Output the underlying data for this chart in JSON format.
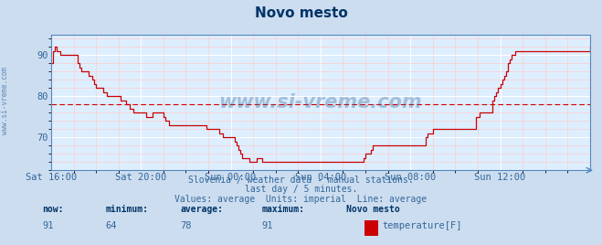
{
  "title": "Novo mesto",
  "bg_color": "#ccddf0",
  "plot_bg_color": "#ddeeff",
  "line_color": "#cc0000",
  "avg_line_color": "#cc0000",
  "avg_value": 78,
  "grid_color_major": "#ffffff",
  "grid_color_minor": "#ffcccc",
  "y_min": 62,
  "y_max": 95,
  "yticks": [
    70,
    80,
    90
  ],
  "xlabel_ticks": [
    0,
    48,
    96,
    144,
    192,
    240,
    288
  ],
  "xlabel_labels": [
    "Sat 16:00",
    "Sat 20:00",
    "Sun 00:00",
    "Sun 04:00",
    "Sun 08:00",
    "Sun 12:00",
    ""
  ],
  "footer_line1": "Slovenia / weather data - manual stations.",
  "footer_line2": "last day / 5 minutes.",
  "footer_line3": "Values: average  Units: imperial  Line: average",
  "legend_label": "temperature[F]",
  "legend_color": "#cc0000",
  "watermark": "www.si-vreme.com",
  "data_y": [
    88,
    91,
    92,
    91,
    91,
    90,
    90,
    90,
    90,
    90,
    90,
    90,
    90,
    90,
    88,
    87,
    86,
    86,
    86,
    86,
    85,
    85,
    84,
    83,
    82,
    82,
    82,
    82,
    81,
    81,
    80,
    80,
    80,
    80,
    80,
    80,
    80,
    79,
    79,
    79,
    78,
    78,
    77,
    77,
    76,
    76,
    76,
    76,
    76,
    76,
    76,
    75,
    75,
    75,
    76,
    76,
    76,
    76,
    76,
    76,
    75,
    74,
    74,
    73,
    73,
    73,
    73,
    73,
    73,
    73,
    73,
    73,
    73,
    73,
    73,
    73,
    73,
    73,
    73,
    73,
    73,
    73,
    73,
    72,
    72,
    72,
    72,
    72,
    72,
    72,
    71,
    71,
    70,
    70,
    70,
    70,
    70,
    70,
    69,
    68,
    67,
    66,
    65,
    65,
    65,
    65,
    64,
    64,
    64,
    64,
    65,
    65,
    65,
    64,
    64,
    64,
    64,
    64,
    64,
    64,
    64,
    64,
    64,
    64,
    64,
    64,
    64,
    64,
    64,
    64,
    64,
    64,
    64,
    64,
    64,
    64,
    64,
    64,
    64,
    64,
    64,
    64,
    64,
    64,
    64,
    64,
    64,
    64,
    64,
    64,
    64,
    64,
    64,
    64,
    64,
    64,
    64,
    64,
    64,
    64,
    64,
    64,
    64,
    64,
    64,
    64,
    64,
    65,
    66,
    66,
    66,
    67,
    68,
    68,
    68,
    68,
    68,
    68,
    68,
    68,
    68,
    68,
    68,
    68,
    68,
    68,
    68,
    68,
    68,
    68,
    68,
    68,
    68,
    68,
    68,
    68,
    68,
    68,
    68,
    68,
    70,
    71,
    71,
    71,
    72,
    72,
    72,
    72,
    72,
    72,
    72,
    72,
    72,
    72,
    72,
    72,
    72,
    72,
    72,
    72,
    72,
    72,
    72,
    72,
    72,
    72,
    72,
    75,
    75,
    76,
    76,
    76,
    76,
    76,
    76,
    76,
    79,
    80,
    81,
    82,
    83,
    84,
    85,
    86,
    88,
    89,
    90,
    90,
    91,
    91,
    91,
    91,
    91,
    91,
    91,
    91,
    91,
    91,
    91,
    91,
    91,
    91,
    91,
    91,
    91,
    91,
    91,
    91,
    91,
    91,
    91,
    91,
    91,
    91,
    91,
    91,
    91,
    91,
    91,
    91,
    91,
    91,
    91,
    91,
    91,
    91,
    91,
    91,
    92
  ]
}
